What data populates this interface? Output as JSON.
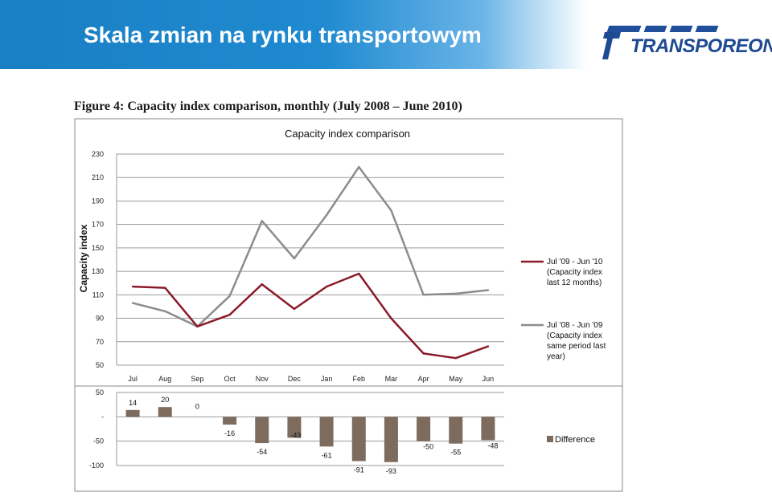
{
  "header": {
    "title": "Skala zmian na rynku transportowym",
    "logo_text": "TRANSPOREON",
    "brand_color": "#1e4a92",
    "banner_color": "#1a7fc4"
  },
  "figure": {
    "caption": "Figure 4: Capacity index comparison, monthly (July 2008 – June 2010)"
  },
  "chart_data": [
    {
      "type": "line",
      "title": "Capacity index comparison",
      "ylabel": "Capacity index",
      "xlabel": "",
      "categories": [
        "Jul",
        "Aug",
        "Sep",
        "Oct",
        "Nov",
        "Dec",
        "Jan",
        "Feb",
        "Mar",
        "Apr",
        "May",
        "Jun"
      ],
      "ylim": [
        50,
        230
      ],
      "yticks": [
        50,
        70,
        90,
        110,
        130,
        150,
        170,
        190,
        210,
        230
      ],
      "grid": true,
      "legend_position": "right",
      "series": [
        {
          "name": "Jul '09 - Jun '10 (Capacity index last 12 months)",
          "legend_lines": [
            "Jul '09 - Jun '10",
            "(Capacity index",
            "last 12 months)"
          ],
          "color": "#8b1a2a",
          "values": [
            117,
            116,
            83,
            93,
            119,
            98,
            117,
            128,
            90,
            60,
            56,
            66
          ]
        },
        {
          "name": "Jul '08 - Jun '09 (Capacity index same period last year)",
          "legend_lines": [
            "Jul '08 - Jun '09",
            "(Capacity index",
            "same period last",
            "year)"
          ],
          "color": "#8c8c8c",
          "values": [
            103,
            96,
            83,
            109,
            173,
            141,
            178,
            219,
            182,
            110,
            111,
            114
          ]
        }
      ]
    },
    {
      "type": "bar",
      "categories": [
        "Jul",
        "Aug",
        "Sep",
        "Oct",
        "Nov",
        "Dec",
        "Jan",
        "Feb",
        "Mar",
        "Apr",
        "May",
        "Jun"
      ],
      "ylim": [
        -100,
        50
      ],
      "yticks": [
        50,
        0,
        -50,
        -100
      ],
      "ytick_labels": [
        "50",
        "-",
        "-50",
        "-100"
      ],
      "grid": true,
      "legend_position": "right",
      "series": [
        {
          "name": "Difference",
          "color": "#7d6b5d",
          "values": [
            14,
            20,
            0,
            -16,
            -54,
            -43,
            -61,
            -91,
            -93,
            -50,
            -55,
            -48
          ],
          "data_labels": [
            "14",
            "20",
            "0",
            "-16",
            "-54",
            "-43",
            "-61",
            "-91",
            "-93",
            "-50",
            "-55",
            "-48"
          ]
        }
      ]
    }
  ]
}
